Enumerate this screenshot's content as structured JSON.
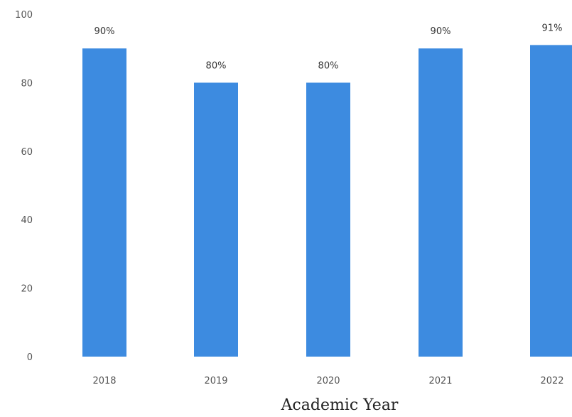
{
  "chart_data": {
    "type": "bar",
    "categories": [
      "2018",
      "2019",
      "2020",
      "2021",
      "2022"
    ],
    "values": [
      90,
      80,
      80,
      90,
      91
    ],
    "data_labels": [
      "90%",
      "80%",
      "80%",
      "90%",
      "91%"
    ],
    "title": "",
    "xlabel": "Academic Year",
    "ylabel": "",
    "ylim": [
      0,
      100
    ],
    "yticks": [
      "0",
      "20",
      "40",
      "60",
      "80",
      "100"
    ],
    "ytick_values": [
      0,
      20,
      40,
      60,
      80,
      100
    ],
    "grid": false,
    "legend": "none",
    "bar_color": "#3d8be0"
  }
}
